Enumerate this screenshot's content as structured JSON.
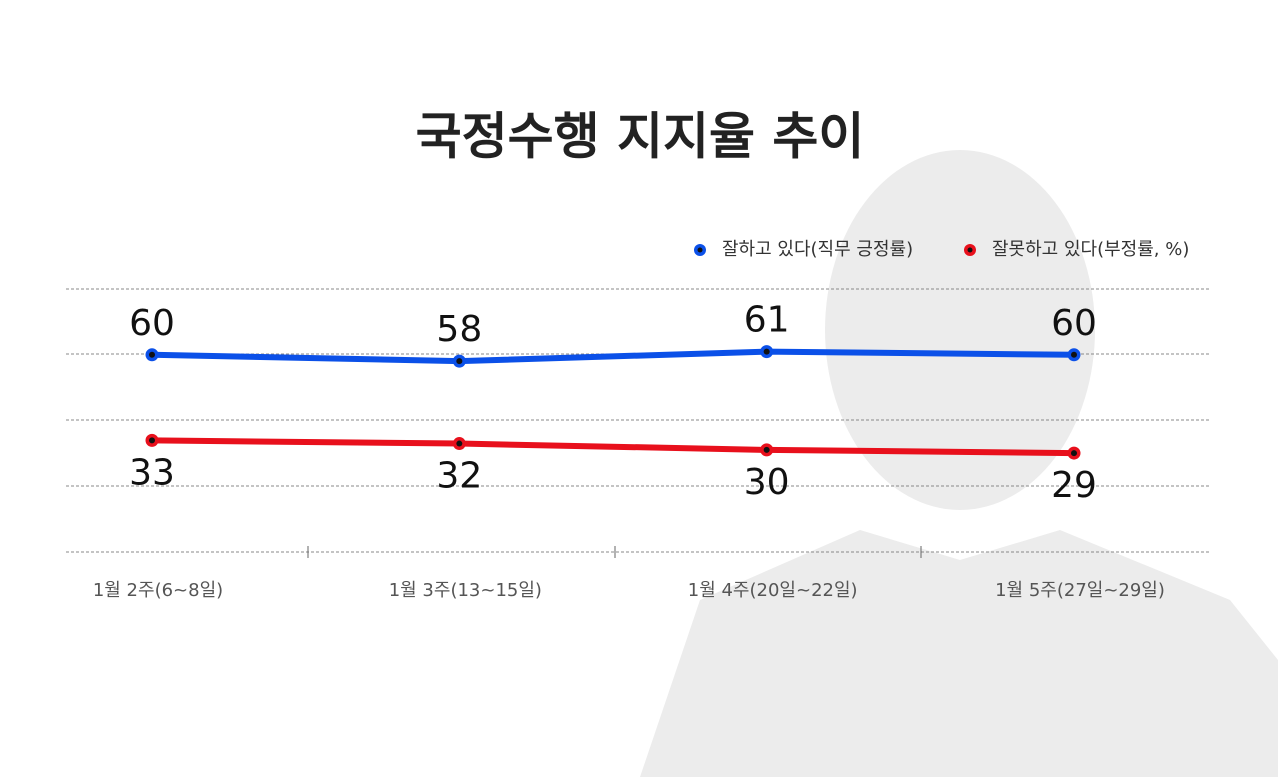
{
  "chart_data": {
    "type": "line",
    "title": "국정수행 지지율 추이",
    "categories": [
      "1월 2주(6~8일)",
      "1월 3주(13~15일)",
      "1월 4주(20일~22일)",
      "1월 5주(27일~29일)"
    ],
    "series": [
      {
        "name": "잘하고 있다(직무 긍정률)",
        "color": "#0b50e8",
        "values": [
          60,
          58,
          61,
          60
        ]
      },
      {
        "name": "잘못하고 있다(부정률, %)",
        "color": "#e8101c",
        "values": [
          33,
          32,
          30,
          29
        ]
      }
    ],
    "ylim": [
      0,
      100
    ],
    "legend": "top-right"
  }
}
